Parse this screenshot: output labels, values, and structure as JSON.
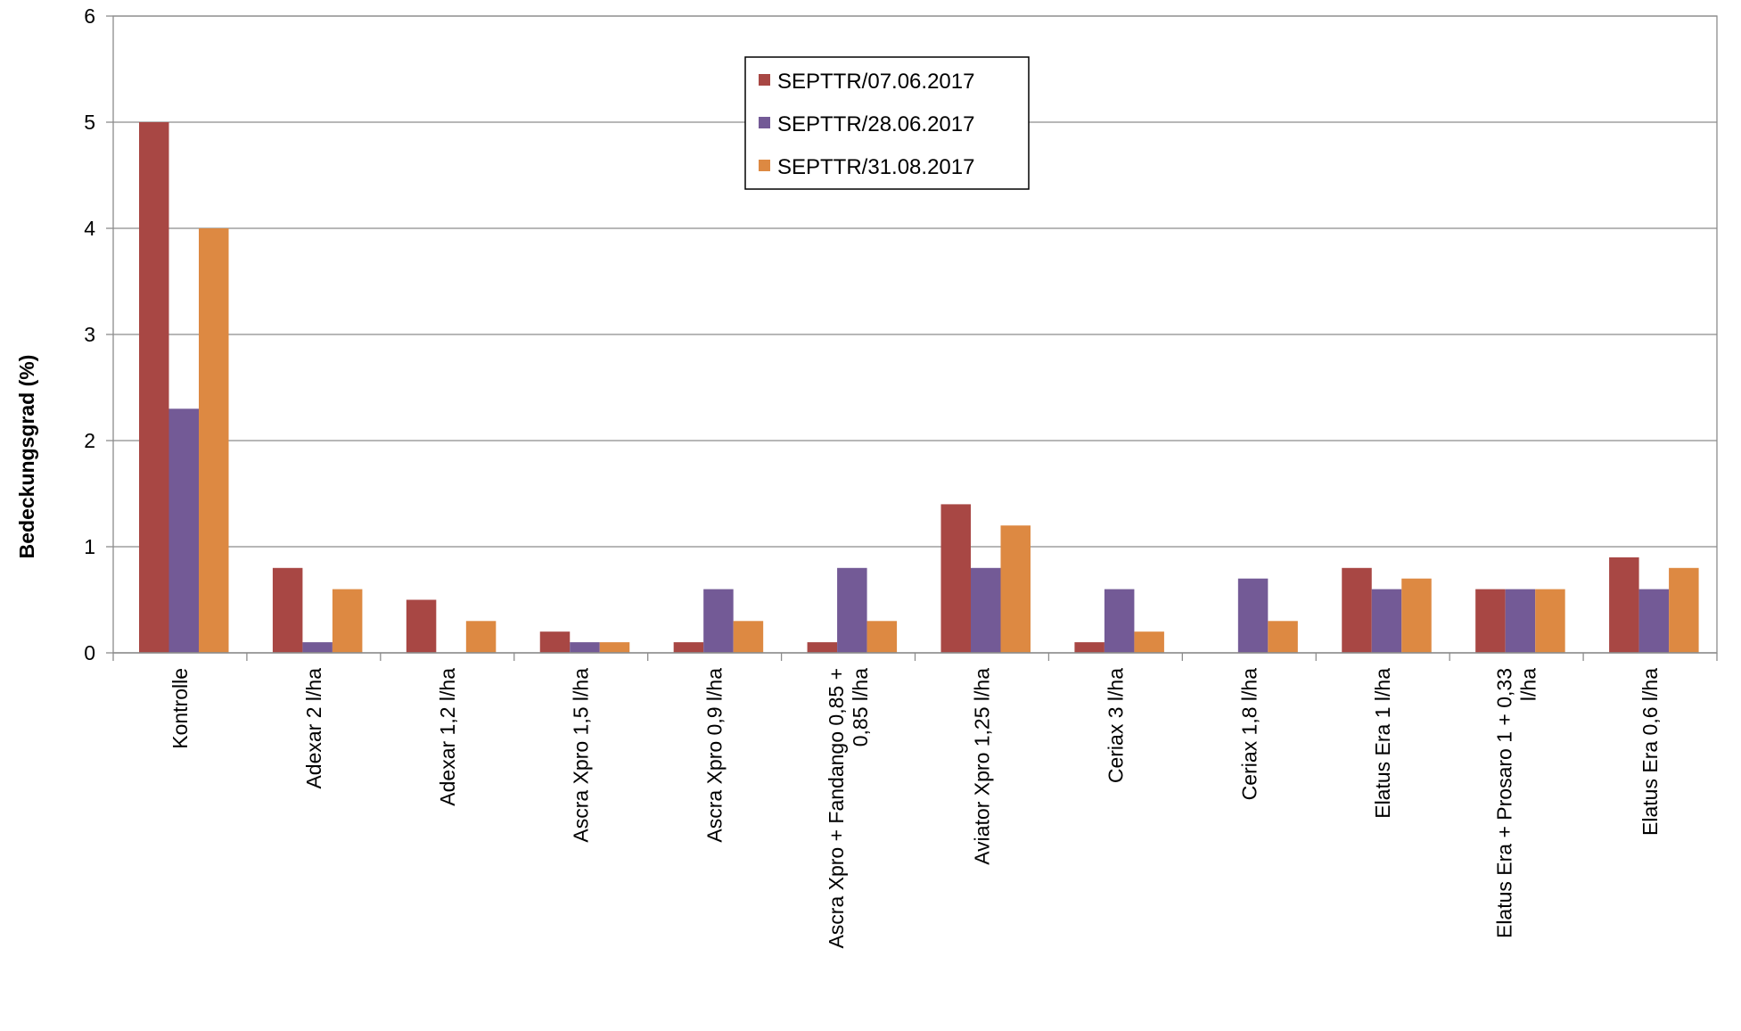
{
  "chart_data": {
    "type": "bar",
    "ylabel": "Bedeckungsgrad (%)",
    "xlabel": "",
    "ylim": [
      0,
      6
    ],
    "yticks": [
      0,
      1,
      2,
      3,
      4,
      5,
      6
    ],
    "grid": true,
    "legend_position": "top-center",
    "categories": [
      [
        "Kontrolle"
      ],
      [
        "Adexar 2 l/ha"
      ],
      [
        "Adexar 1,2 l/ha"
      ],
      [
        "Ascra Xpro 1,5 l/ha"
      ],
      [
        "Ascra Xpro 0,9 l/ha"
      ],
      [
        "Ascra Xpro + Fandango 0,85 +",
        "0,85 l/ha"
      ],
      [
        "Aviator Xpro 1,25 l/ha"
      ],
      [
        "Ceriax 3 l/ha"
      ],
      [
        "Ceriax 1,8 l/ha"
      ],
      [
        "Elatus Era 1 l/ha"
      ],
      [
        "Elatus Era + Prosaro 1 + 0,33",
        "l/ha"
      ],
      [
        "Elatus Era 0,6 l/ha"
      ]
    ],
    "series": [
      {
        "name": "SEPTTR/07.06.2017",
        "color": "#A84744",
        "values": [
          5.0,
          0.8,
          0.5,
          0.2,
          0.1,
          0.1,
          1.4,
          0.1,
          0.0,
          0.8,
          0.6,
          0.9
        ]
      },
      {
        "name": "SEPTTR/28.06.2017",
        "color": "#735A96",
        "values": [
          2.3,
          0.1,
          0.0,
          0.1,
          0.6,
          0.8,
          0.8,
          0.6,
          0.7,
          0.6,
          0.6,
          0.6
        ]
      },
      {
        "name": "SEPTTR/31.08.2017",
        "color": "#DD8942",
        "values": [
          4.0,
          0.6,
          0.3,
          0.1,
          0.3,
          0.3,
          1.2,
          0.2,
          0.3,
          0.7,
          0.6,
          0.8
        ]
      }
    ]
  }
}
